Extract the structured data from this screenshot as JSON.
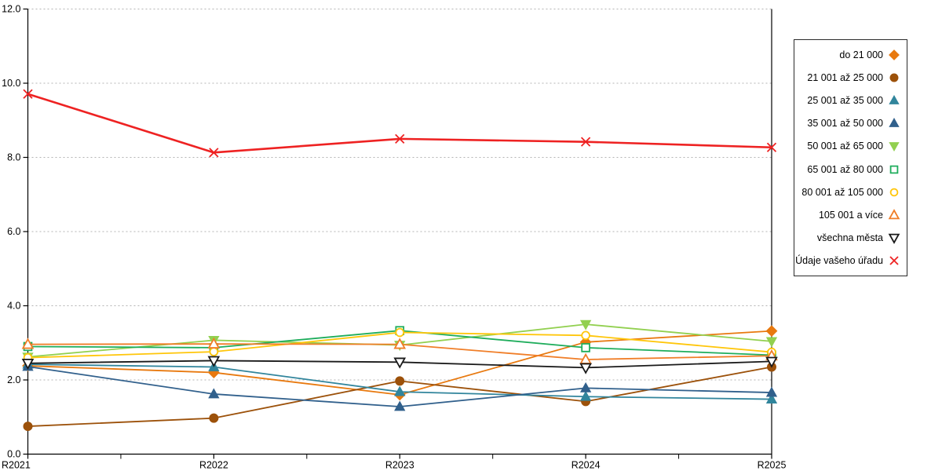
{
  "chart_data": {
    "type": "line",
    "title": "",
    "xlabel": "",
    "ylabel": "",
    "categories": [
      "R2021",
      "R2022",
      "R2023",
      "R2024",
      "R2025"
    ],
    "ylim": [
      0,
      12
    ],
    "y_tick_labels": [
      "0.0",
      "2.0",
      "4.0",
      "6.0",
      "8.0",
      "10.0",
      "12.0"
    ],
    "grid": "horizontal dashed gray, minor x ticks at midpoints",
    "legend_position": "right",
    "axis_color": "#000000",
    "gridline_color": "#b3b3b3",
    "series": [
      {
        "name": "do 21 000",
        "color": "#E8790F",
        "marker": "diamond",
        "filled": true,
        "line_width": 1.8,
        "values": [
          2.38,
          2.2,
          1.6,
          3.02,
          3.32
        ]
      },
      {
        "name": "21 001 až 25 000",
        "color": "#9C510A",
        "marker": "circle",
        "filled": true,
        "line_width": 1.8,
        "values": [
          0.75,
          0.97,
          1.97,
          1.42,
          2.35
        ]
      },
      {
        "name": "25 001 až 35 000",
        "color": "#31859C",
        "marker": "triangle-up",
        "filled": true,
        "line_width": 1.8,
        "values": [
          2.42,
          2.35,
          1.68,
          1.55,
          1.48
        ]
      },
      {
        "name": "35 001 až 50 000",
        "color": "#31608C",
        "marker": "triangle-up",
        "filled": true,
        "line_width": 1.8,
        "values": [
          2.36,
          1.62,
          1.28,
          1.78,
          1.66
        ]
      },
      {
        "name": "50 001 až 65 000",
        "color": "#92D050",
        "marker": "triangle-down",
        "filled": true,
        "line_width": 1.8,
        "values": [
          2.62,
          3.07,
          2.94,
          3.5,
          3.04
        ]
      },
      {
        "name": "65 001 až 80 000",
        "color": "#1FAD5C",
        "marker": "square",
        "filled": false,
        "line_width": 1.8,
        "values": [
          2.9,
          2.87,
          3.33,
          2.87,
          2.67
        ]
      },
      {
        "name": "80 001 až 105 000",
        "color": "#FFC60A",
        "marker": "circle",
        "filled": false,
        "line_width": 1.8,
        "values": [
          2.6,
          2.76,
          3.28,
          3.2,
          2.75
        ]
      },
      {
        "name": "105 001 a více",
        "color": "#F07E28",
        "marker": "triangle-up",
        "filled": false,
        "line_width": 1.8,
        "values": [
          2.96,
          2.97,
          2.96,
          2.55,
          2.65
        ]
      },
      {
        "name": "všechna města",
        "color": "#1a1a1a",
        "marker": "triangle-down",
        "filled": false,
        "line_width": 1.8,
        "values": [
          2.45,
          2.52,
          2.48,
          2.33,
          2.5
        ]
      },
      {
        "name": "Údaje vašeho úřadu",
        "color": "#EE2222",
        "marker": "x",
        "filled": false,
        "line_width": 2.6,
        "values": [
          9.71,
          8.13,
          8.5,
          8.42,
          8.27
        ]
      }
    ]
  }
}
